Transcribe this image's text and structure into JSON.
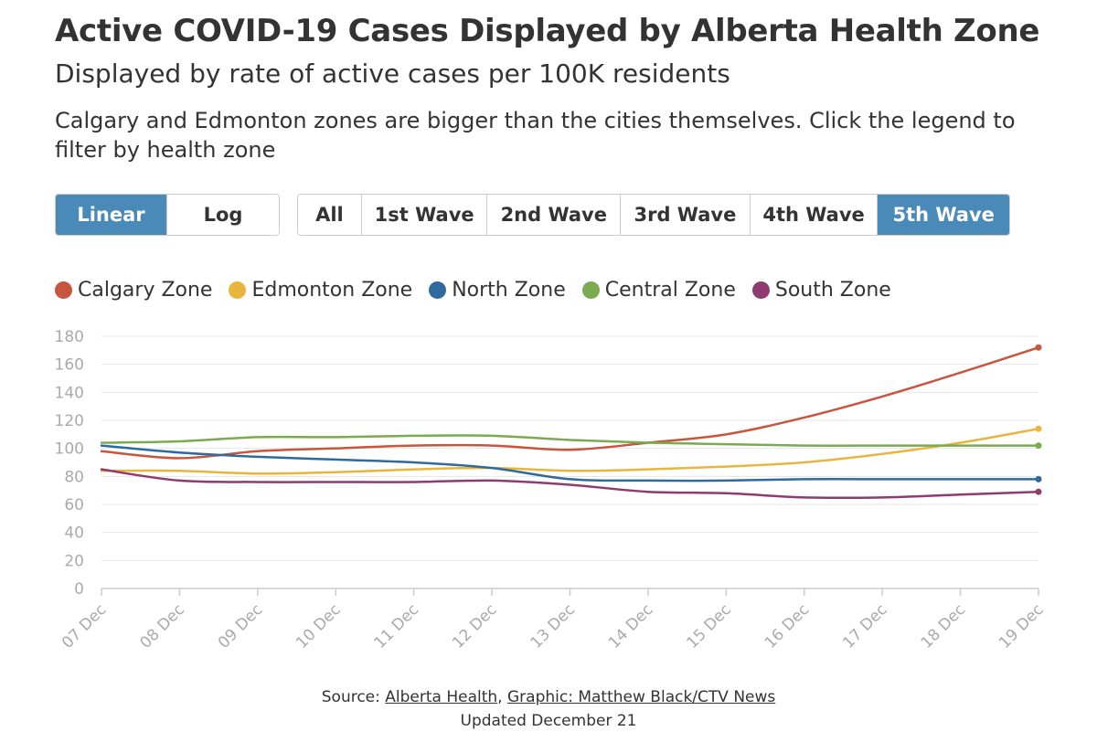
{
  "header": {
    "title": "Active COVID-19 Cases Displayed by Alberta Health Zone",
    "subtitle": "Displayed by rate of active cases per 100K residents",
    "description": "Calgary and Edmonton zones are bigger than the cities themselves. Click the legend to filter by health zone"
  },
  "scale_buttons": [
    {
      "label": "Linear",
      "active": true
    },
    {
      "label": "Log",
      "active": false
    }
  ],
  "wave_buttons": [
    {
      "label": "All",
      "active": false
    },
    {
      "label": "1st Wave",
      "active": false
    },
    {
      "label": "2nd Wave",
      "active": false
    },
    {
      "label": "3rd Wave",
      "active": false
    },
    {
      "label": "4th Wave",
      "active": false
    },
    {
      "label": "5th Wave",
      "active": true
    }
  ],
  "colors": {
    "accent": "#4a8ab8"
  },
  "footer": {
    "source_prefix": "Source: ",
    "source_link": "Alberta Health",
    "separator": ", ",
    "graphic_link": "Graphic: Matthew Black/CTV News",
    "updated": "Updated December 21"
  },
  "chart_data": {
    "type": "line",
    "x": [
      "07 Dec",
      "08 Dec",
      "09 Dec",
      "10 Dec",
      "11 Dec",
      "12 Dec",
      "13 Dec",
      "14 Dec",
      "15 Dec",
      "16 Dec",
      "17 Dec",
      "18 Dec",
      "19 Dec"
    ],
    "ylim": [
      0,
      180
    ],
    "yticks": [
      0,
      20,
      40,
      60,
      80,
      100,
      120,
      140,
      160,
      180
    ],
    "grid": true,
    "legend_position": "top-left",
    "series": [
      {
        "name": "Calgary Zone",
        "color": "#c8553d",
        "values": [
          98,
          93,
          98,
          100,
          102,
          102,
          99,
          104,
          110,
          122,
          137,
          154,
          172
        ]
      },
      {
        "name": "Edmonton Zone",
        "color": "#e8b53d",
        "values": [
          84,
          84,
          82,
          83,
          85,
          86,
          84,
          85,
          87,
          90,
          96,
          104,
          114
        ]
      },
      {
        "name": "North Zone",
        "color": "#2e6a9e",
        "values": [
          102,
          97,
          94,
          92,
          90,
          86,
          78,
          77,
          77,
          78,
          78,
          78,
          78
        ]
      },
      {
        "name": "Central Zone",
        "color": "#7aab4e",
        "values": [
          104,
          105,
          108,
          108,
          109,
          109,
          106,
          104,
          103,
          102,
          102,
          102,
          102
        ]
      },
      {
        "name": "South Zone",
        "color": "#8e3b72",
        "values": [
          85,
          77,
          76,
          76,
          76,
          77,
          74,
          69,
          68,
          65,
          65,
          67,
          69
        ]
      }
    ]
  }
}
